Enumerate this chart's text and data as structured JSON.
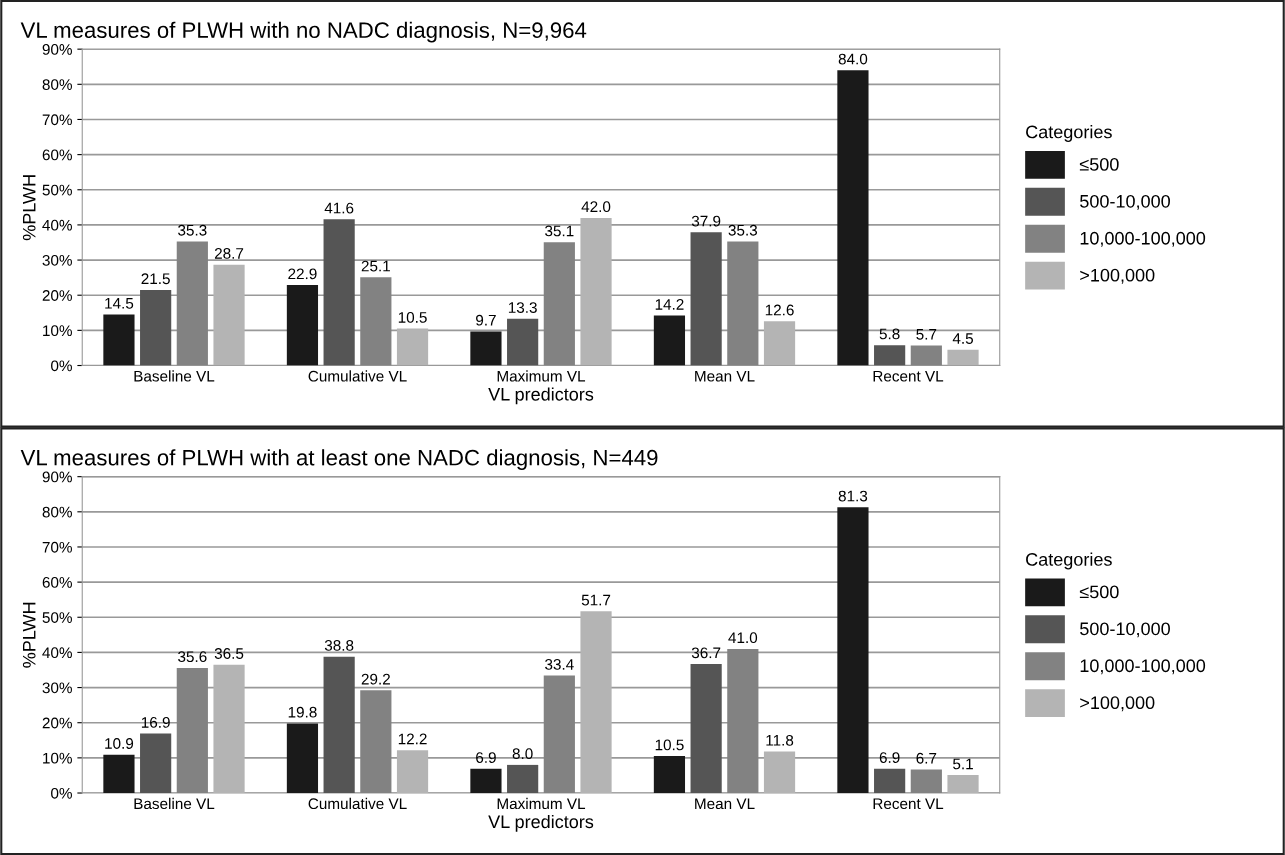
{
  "chart_data": [
    {
      "type": "bar",
      "title": "VL measures of PLWH with no NADC diagnosis, N=9,964",
      "xlabel": "VL predictors",
      "ylabel": "%PLWH",
      "legend_title": "Categories",
      "categories": [
        "Baseline VL",
        "Cumulative VL",
        "Maximum VL",
        "Mean VL",
        "Recent VL"
      ],
      "series": [
        {
          "name": "≤500",
          "color": "#1a1a1a",
          "values": [
            14.5,
            22.9,
            9.7,
            14.2,
            84.0
          ],
          "value_labels": [
            "14.5",
            "22.9",
            "9.7",
            "14.2",
            "84.0"
          ]
        },
        {
          "name": "500-10,000",
          "color": "#555555",
          "values": [
            21.5,
            41.6,
            13.3,
            37.9,
            5.8
          ],
          "value_labels": [
            "21.5",
            "41.6",
            "13.3",
            "37.9",
            "5.8"
          ]
        },
        {
          "name": "10,000-100,000",
          "color": "#828282",
          "values": [
            35.3,
            25.1,
            35.1,
            35.3,
            5.7
          ],
          "value_labels": [
            "35.3",
            "25.1",
            "35.1",
            "35.3",
            "5.7"
          ]
        },
        {
          "name": ">100,000",
          "color": "#b4b4b4",
          "values": [
            28.7,
            10.5,
            42.0,
            12.6,
            4.5
          ],
          "value_labels": [
            "28.7",
            "10.5",
            "42.0",
            "12.6",
            "4.5"
          ]
        }
      ],
      "ylim": [
        0,
        90
      ],
      "yticks": [
        {
          "value": 0,
          "label": "0%"
        },
        {
          "value": 10,
          "label": "10%"
        },
        {
          "value": 20,
          "label": "20%"
        },
        {
          "value": 30,
          "label": "30%"
        },
        {
          "value": 40,
          "label": "40%"
        },
        {
          "value": 50,
          "label": "50%"
        },
        {
          "value": 60,
          "label": "60%"
        },
        {
          "value": 70,
          "label": "70%"
        },
        {
          "value": 80,
          "label": "80%"
        },
        {
          "value": 90,
          "label": "90%"
        }
      ],
      "grid": "y",
      "legend": "right"
    },
    {
      "type": "bar",
      "title": "VL measures of PLWH with at least one NADC diagnosis, N=449",
      "xlabel": "VL predictors",
      "ylabel": "%PLWH",
      "legend_title": "Categories",
      "categories": [
        "Baseline VL",
        "Cumulative VL",
        "Maximum VL",
        "Mean VL",
        "Recent VL"
      ],
      "series": [
        {
          "name": "≤500",
          "color": "#1a1a1a",
          "values": [
            10.9,
            19.8,
            6.9,
            10.5,
            81.3
          ],
          "value_labels": [
            "10.9",
            "19.8",
            "6.9",
            "10.5",
            "81.3"
          ]
        },
        {
          "name": "500-10,000",
          "color": "#555555",
          "values": [
            16.9,
            38.8,
            8.0,
            36.7,
            6.9
          ],
          "value_labels": [
            "16.9",
            "38.8",
            "8.0",
            "36.7",
            "6.9"
          ]
        },
        {
          "name": "10,000-100,000",
          "color": "#828282",
          "values": [
            35.6,
            29.2,
            33.4,
            41.0,
            6.7
          ],
          "value_labels": [
            "35.6",
            "29.2",
            "33.4",
            "41.0",
            "6.7"
          ]
        },
        {
          "name": ">100,000",
          "color": "#b4b4b4",
          "values": [
            36.5,
            12.2,
            51.7,
            11.8,
            5.1
          ],
          "value_labels": [
            "36.5",
            "12.2",
            "51.7",
            "11.8",
            "5.1"
          ]
        }
      ],
      "ylim": [
        0,
        90
      ],
      "yticks": [
        {
          "value": 0,
          "label": "0%"
        },
        {
          "value": 10,
          "label": "10%"
        },
        {
          "value": 20,
          "label": "20%"
        },
        {
          "value": 30,
          "label": "30%"
        },
        {
          "value": 40,
          "label": "40%"
        },
        {
          "value": 50,
          "label": "50%"
        },
        {
          "value": 60,
          "label": "60%"
        },
        {
          "value": 70,
          "label": "70%"
        },
        {
          "value": 80,
          "label": "80%"
        },
        {
          "value": 90,
          "label": "90%"
        }
      ],
      "grid": "y",
      "legend": "right"
    }
  ]
}
